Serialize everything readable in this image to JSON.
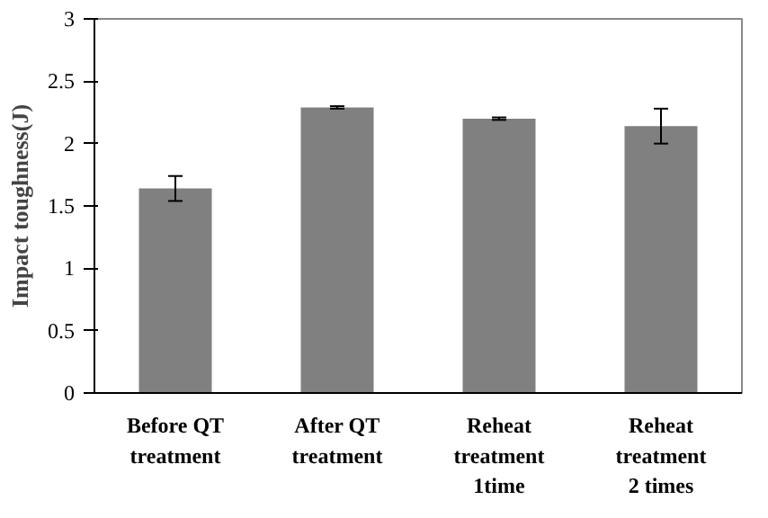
{
  "chart_data": {
    "type": "bar",
    "ylabel": "Impact toughness(J)",
    "categories": [
      "Before QT\ntreatment",
      "After QT\ntreatment",
      "Reheat\ntreatment\n1time",
      "Reheat\ntreatment\n2 times"
    ],
    "values": [
      1.64,
      2.29,
      2.2,
      2.14
    ],
    "errors": [
      0.1,
      0.01,
      0.01,
      0.14
    ],
    "color": "#808080",
    "ylim": [
      0,
      3
    ],
    "yticks": [
      0,
      {
        "value": 0.5,
        "label": "0.5"
      },
      1,
      {
        "value": 1.5,
        "label": "1.5"
      },
      2,
      {
        "value": 2.5,
        "label": "2.5"
      },
      3
    ],
    "grid": false
  }
}
